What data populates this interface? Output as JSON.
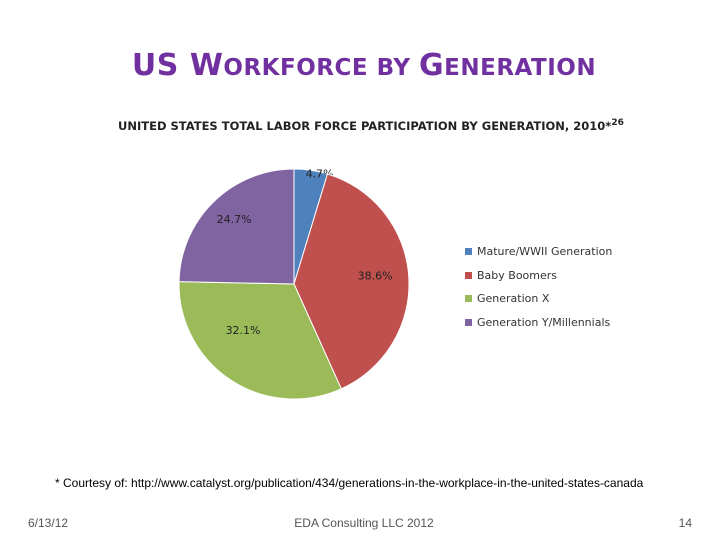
{
  "slide": {
    "title_parts": [
      {
        "big": "US ",
        "small": ""
      },
      {
        "big": "W",
        "small": "ORKFORCE "
      },
      {
        "big": "",
        "small": "BY "
      },
      {
        "big": "G",
        "small": "ENERATION"
      }
    ],
    "footnote": "* Courtesy of: http://www.catalyst.org/publication/434/generations-in-the-workplace-in-the-united-states-canada",
    "footer": {
      "date": "6/13/12",
      "center": "EDA Consulting LLC 2012",
      "page": "14"
    },
    "title_color": "#7030a0"
  },
  "chart_data": {
    "type": "pie",
    "title": "UNITED STATES TOTAL LABOR FORCE PARTICIPATION BY GENERATION, 2010*",
    "title_superscript": "26",
    "slices": [
      {
        "label": "Mature/WWII Generation",
        "value": 4.7,
        "display": "4.7%",
        "color": "#4f81bd"
      },
      {
        "label": "Baby Boomers",
        "value": 38.6,
        "display": "38.6%",
        "color": "#c0504d"
      },
      {
        "label": "Generation X",
        "value": 32.1,
        "display": "32.1%",
        "color": "#9bbb59"
      },
      {
        "label": "Generation Y/Millennials",
        "value": 24.7,
        "display": "24.7%",
        "color": "#8064a2"
      }
    ],
    "legend_position": "right",
    "start_angle": "12 o'clock, clockwise"
  }
}
